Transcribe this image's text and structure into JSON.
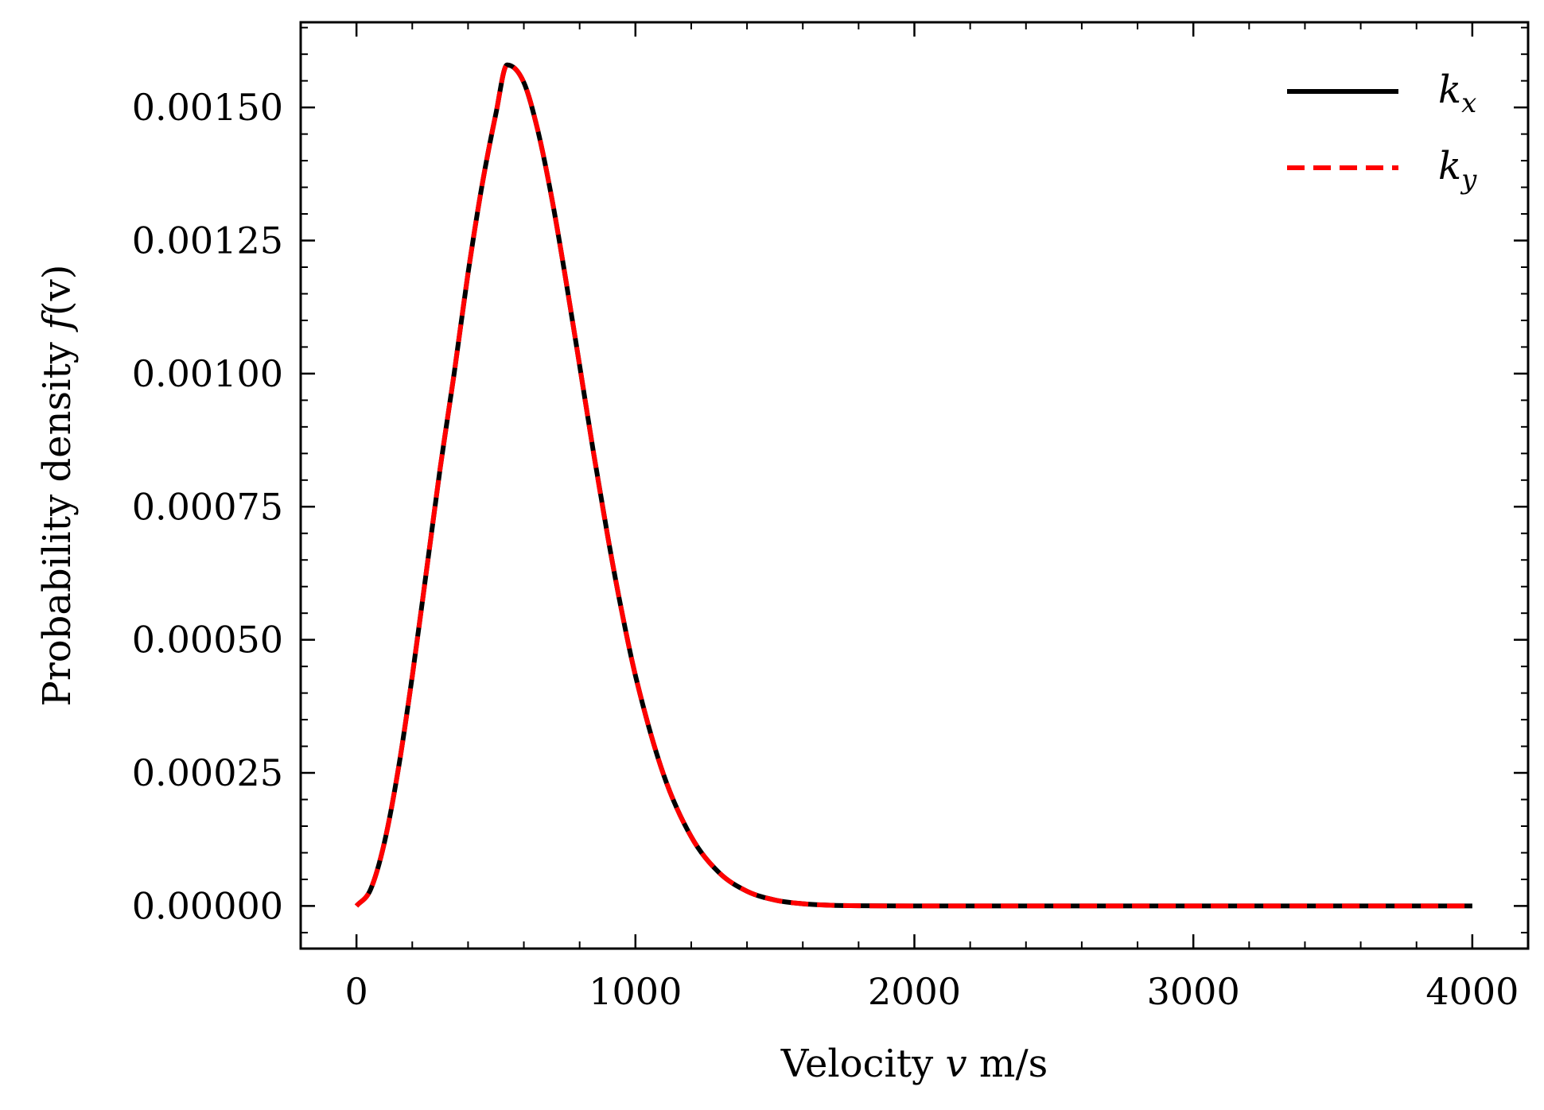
{
  "chart_data": {
    "type": "line",
    "title": "",
    "xlabel": "Velocity v m/s",
    "xlabel_parts": {
      "prefix": "Velocity ",
      "var": "v",
      "suffix": " m/s"
    },
    "ylabel": "Probability density f(v)",
    "ylabel_parts": {
      "prefix": "Probability density ",
      "var": "f",
      "suffix": "(v)"
    },
    "xlim": [
      -200,
      4200
    ],
    "ylim": [
      -8e-05,
      0.00166
    ],
    "x_ticks": [
      0,
      1000,
      2000,
      3000,
      4000
    ],
    "x_tick_labels": [
      "0",
      "1000",
      "2000",
      "3000",
      "4000"
    ],
    "y_ticks": [
      0,
      0.00025,
      0.0005,
      0.00075,
      0.001,
      0.00125,
      0.0015
    ],
    "y_tick_labels": [
      "0.00000",
      "0.00025",
      "0.00050",
      "0.00075",
      "0.00100",
      "0.00125",
      "0.00150"
    ],
    "grid": false,
    "legend_position": "top-right",
    "series": [
      {
        "name": "k_x",
        "label_main": "k",
        "label_sub": "x",
        "color": "#000000",
        "style": "solid",
        "x": [
          0,
          50,
          100,
          150,
          200,
          250,
          300,
          350,
          400,
          450,
          500,
          540,
          600,
          650,
          700,
          750,
          800,
          850,
          900,
          950,
          1000,
          1100,
          1200,
          1300,
          1400,
          1500,
          1600,
          1700,
          1800,
          2000,
          2500,
          3000,
          3500,
          4000
        ],
        "y": [
          0,
          3.05e-05,
          0.000119,
          0.000257,
          0.000432,
          0.000626,
          0.000822,
          0.001,
          0.001189,
          0.001353,
          0.001489,
          0.00158,
          0.001547,
          0.001457,
          0.00133,
          0.001178,
          0.001015,
          0.000851,
          0.000696,
          0.000556,
          0.000433,
          0.000248,
          0.00013,
          6.27e-05,
          2.77e-05,
          1.12e-05,
          4.2e-06,
          1.4e-06,
          5e-07,
          0,
          0,
          0,
          0,
          0
        ]
      },
      {
        "name": "k_y",
        "label_main": "k",
        "label_sub": "y",
        "color": "#ff0000",
        "style": "dashed",
        "x": [
          0,
          50,
          100,
          150,
          200,
          250,
          300,
          350,
          400,
          450,
          500,
          540,
          600,
          650,
          700,
          750,
          800,
          850,
          900,
          950,
          1000,
          1100,
          1200,
          1300,
          1400,
          1500,
          1600,
          1700,
          1800,
          2000,
          2500,
          3000,
          3500,
          4000
        ],
        "y": [
          0,
          3.05e-05,
          0.000119,
          0.000257,
          0.000432,
          0.000626,
          0.000822,
          0.001,
          0.001189,
          0.001353,
          0.001489,
          0.00158,
          0.001547,
          0.001457,
          0.00133,
          0.001178,
          0.001015,
          0.000851,
          0.000696,
          0.000556,
          0.000433,
          0.000248,
          0.00013,
          6.27e-05,
          2.77e-05,
          1.12e-05,
          4.2e-06,
          1.4e-06,
          5e-07,
          0,
          0,
          0,
          0,
          0
        ]
      }
    ]
  }
}
